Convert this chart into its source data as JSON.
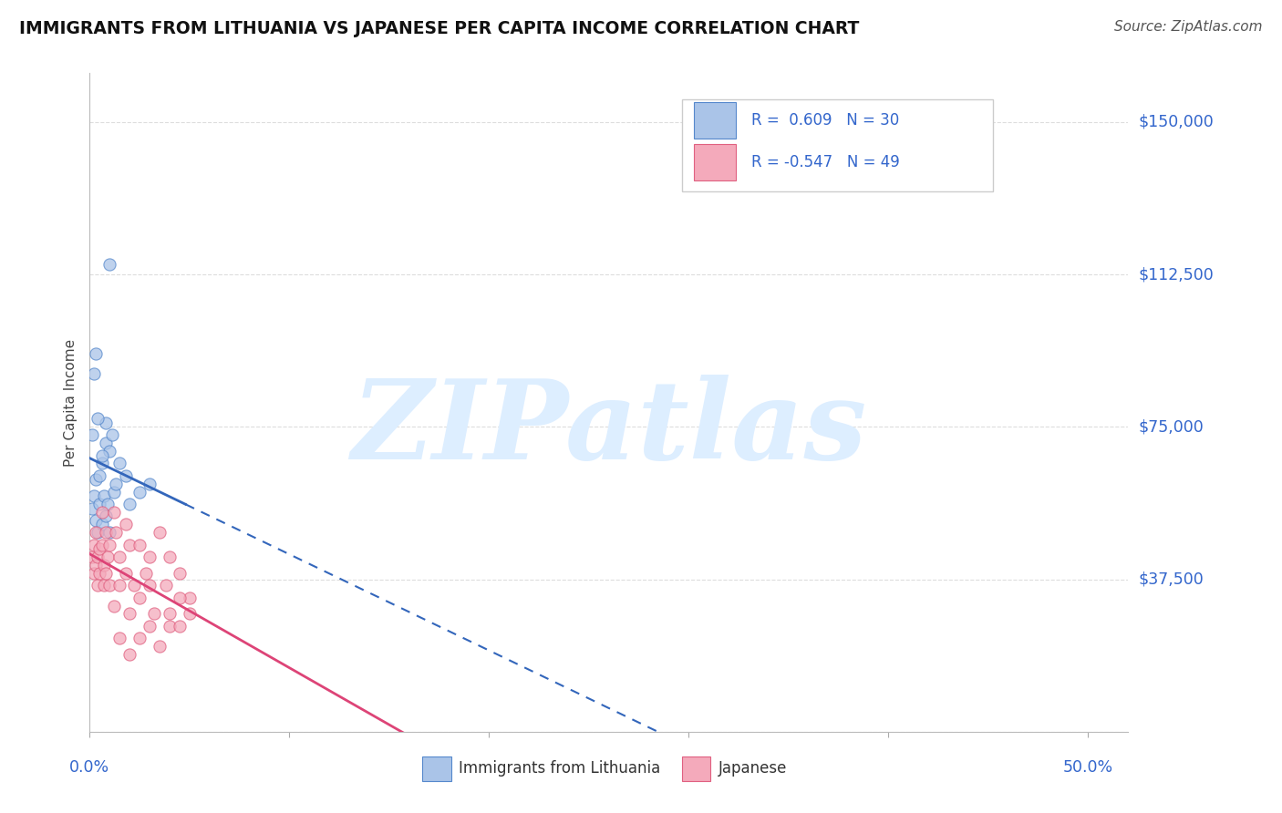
{
  "title": "IMMIGRANTS FROM LITHUANIA VS JAPANESE PER CAPITA INCOME CORRELATION CHART",
  "source": "Source: ZipAtlas.com",
  "ylabel": "Per Capita Income",
  "y_ticks": [
    0,
    37500,
    75000,
    112500,
    150000
  ],
  "y_tick_labels": [
    "",
    "$37,500",
    "$75,000",
    "$112,500",
    "$150,000"
  ],
  "x_ticks": [
    0.0,
    0.1,
    0.2,
    0.3,
    0.4,
    0.5
  ],
  "x_tick_labels": [
    "",
    "",
    "",
    "",
    "",
    ""
  ],
  "xlim": [
    0.0,
    0.52
  ],
  "ylim": [
    0,
    162000
  ],
  "legend_blue_label": "Immigrants from Lithuania",
  "legend_pink_label": "Japanese",
  "R_blue": 0.609,
  "N_blue": 30,
  "R_pink": -0.547,
  "N_pink": 49,
  "blue_scatter_color": "#aac4e8",
  "blue_edge_color": "#5588cc",
  "pink_scatter_color": "#f4aabb",
  "pink_edge_color": "#e06080",
  "blue_line_color": "#3366bb",
  "pink_line_color": "#dd4477",
  "background_color": "#ffffff",
  "watermark": "ZIPatlas",
  "watermark_color": "#ddeeff",
  "grid_color": "#dddddd",
  "right_label_color": "#3366cc",
  "blue_points": [
    [
      0.001,
      55000
    ],
    [
      0.002,
      58000
    ],
    [
      0.003,
      52000
    ],
    [
      0.003,
      62000
    ],
    [
      0.004,
      49000
    ],
    [
      0.005,
      56000
    ],
    [
      0.005,
      63000
    ],
    [
      0.006,
      51000
    ],
    [
      0.006,
      66000
    ],
    [
      0.007,
      58000
    ],
    [
      0.008,
      53000
    ],
    [
      0.008,
      71000
    ],
    [
      0.009,
      56000
    ],
    [
      0.01,
      69000
    ],
    [
      0.01,
      49000
    ],
    [
      0.011,
      73000
    ],
    [
      0.012,
      59000
    ],
    [
      0.013,
      61000
    ],
    [
      0.015,
      66000
    ],
    [
      0.018,
      63000
    ],
    [
      0.02,
      56000
    ],
    [
      0.025,
      59000
    ],
    [
      0.03,
      61000
    ],
    [
      0.01,
      115000
    ],
    [
      0.002,
      88000
    ],
    [
      0.003,
      93000
    ],
    [
      0.001,
      73000
    ],
    [
      0.008,
      76000
    ],
    [
      0.004,
      77000
    ],
    [
      0.006,
      68000
    ]
  ],
  "pink_points": [
    [
      0.001,
      43000
    ],
    [
      0.002,
      39000
    ],
    [
      0.002,
      46000
    ],
    [
      0.003,
      41000
    ],
    [
      0.003,
      49000
    ],
    [
      0.004,
      43000
    ],
    [
      0.004,
      36000
    ],
    [
      0.005,
      45000
    ],
    [
      0.005,
      39000
    ],
    [
      0.006,
      54000
    ],
    [
      0.006,
      46000
    ],
    [
      0.007,
      41000
    ],
    [
      0.007,
      36000
    ],
    [
      0.008,
      49000
    ],
    [
      0.008,
      39000
    ],
    [
      0.009,
      43000
    ],
    [
      0.01,
      46000
    ],
    [
      0.01,
      36000
    ],
    [
      0.012,
      31000
    ],
    [
      0.012,
      54000
    ],
    [
      0.013,
      49000
    ],
    [
      0.015,
      43000
    ],
    [
      0.015,
      36000
    ],
    [
      0.018,
      51000
    ],
    [
      0.018,
      39000
    ],
    [
      0.02,
      46000
    ],
    [
      0.02,
      29000
    ],
    [
      0.022,
      36000
    ],
    [
      0.025,
      33000
    ],
    [
      0.025,
      46000
    ],
    [
      0.028,
      39000
    ],
    [
      0.03,
      43000
    ],
    [
      0.03,
      36000
    ],
    [
      0.032,
      29000
    ],
    [
      0.035,
      49000
    ],
    [
      0.038,
      36000
    ],
    [
      0.04,
      43000
    ],
    [
      0.04,
      26000
    ],
    [
      0.045,
      39000
    ],
    [
      0.05,
      33000
    ],
    [
      0.015,
      23000
    ],
    [
      0.02,
      19000
    ],
    [
      0.025,
      23000
    ],
    [
      0.03,
      26000
    ],
    [
      0.035,
      21000
    ],
    [
      0.04,
      29000
    ],
    [
      0.045,
      26000
    ],
    [
      0.05,
      29000
    ],
    [
      0.045,
      33000
    ]
  ]
}
